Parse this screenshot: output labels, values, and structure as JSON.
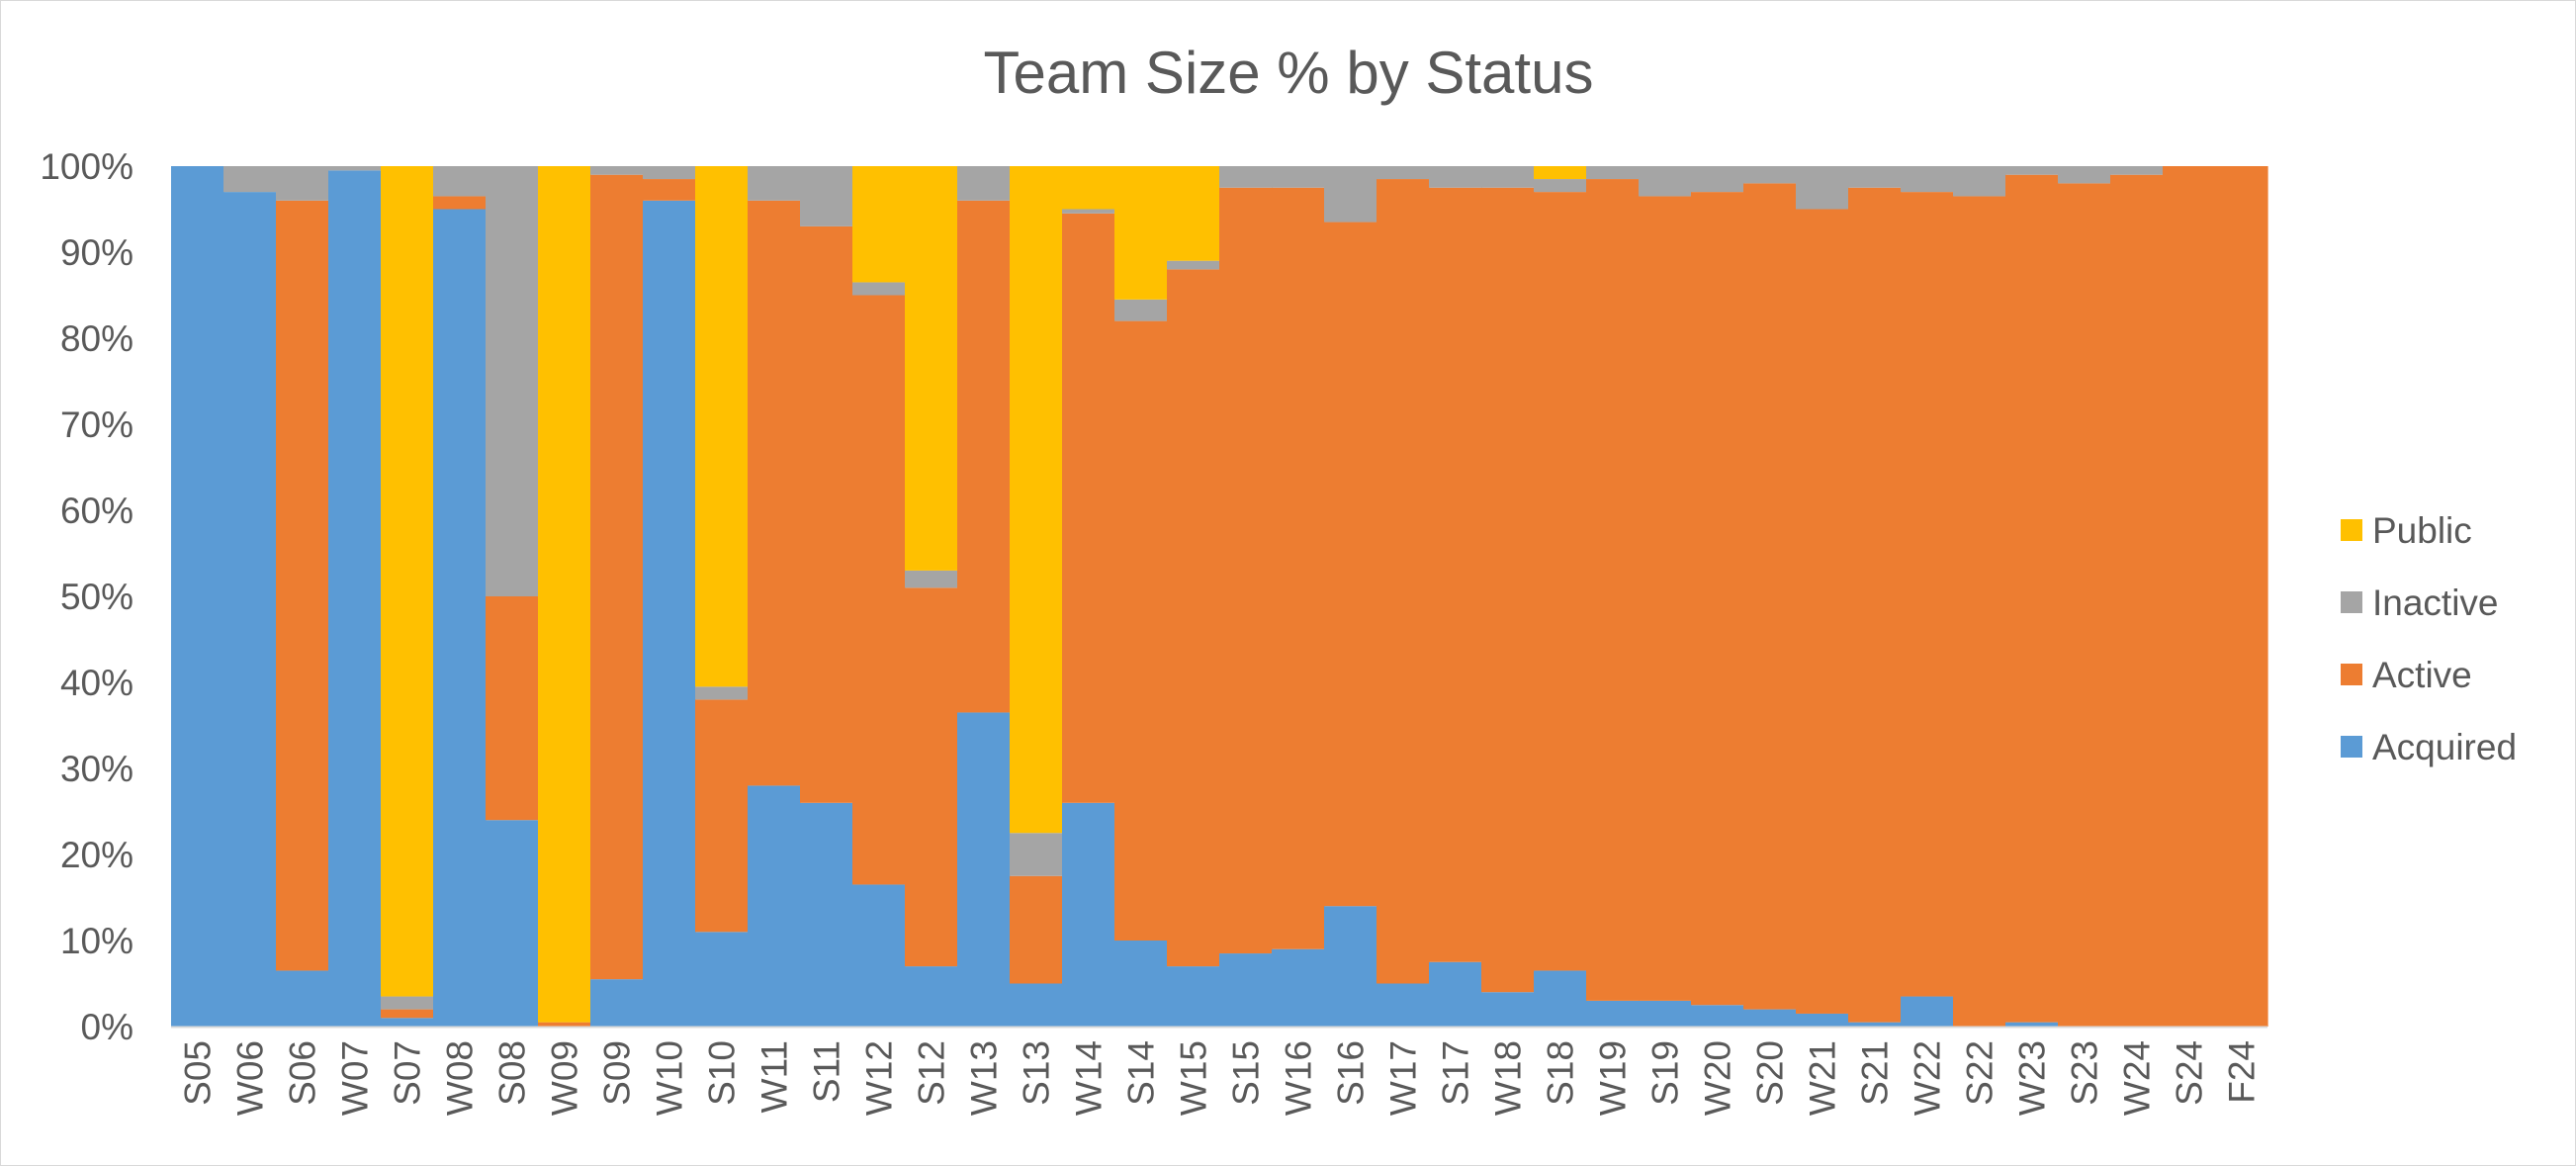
{
  "chart_data": {
    "type": "bar",
    "stacked": "percent",
    "title": "Team Size % by Status",
    "xlabel": "",
    "ylabel": "",
    "ylim": [
      0,
      100
    ],
    "y_ticks": [
      "0%",
      "10%",
      "20%",
      "30%",
      "40%",
      "50%",
      "60%",
      "70%",
      "80%",
      "90%",
      "100%"
    ],
    "grid": false,
    "legend_position": "right",
    "categories": [
      "S05",
      "W06",
      "S06",
      "W07",
      "S07",
      "W08",
      "S08",
      "W09",
      "S09",
      "W10",
      "S10",
      "W11",
      "S11",
      "W12",
      "S12",
      "W13",
      "S13",
      "W14",
      "S14",
      "W15",
      "S15",
      "W16",
      "S16",
      "W17",
      "S17",
      "W18",
      "S18",
      "W19",
      "S19",
      "W20",
      "S20",
      "W21",
      "S21",
      "W22",
      "S22",
      "W23",
      "S23",
      "W24",
      "S24",
      "F24"
    ],
    "series": [
      {
        "name": "Acquired",
        "color": "#5b9bd5",
        "values": [
          100,
          97,
          6.5,
          99.5,
          1,
          95,
          24,
          0,
          5.5,
          96,
          11,
          28,
          26,
          16.5,
          7,
          36.5,
          5,
          26,
          10,
          7,
          8.5,
          9,
          14,
          5,
          7.5,
          4,
          6.5,
          3,
          3,
          2.5,
          2,
          1.5,
          0.5,
          3.5,
          0,
          0.5,
          0,
          0,
          0,
          0
        ]
      },
      {
        "name": "Active",
        "color": "#ed7d31",
        "values": [
          0,
          0,
          89.5,
          0,
          1,
          1.5,
          26,
          0.5,
          93.5,
          2.5,
          27,
          68,
          67,
          68.5,
          44,
          59.5,
          12.5,
          68.5,
          72,
          81,
          89,
          88.5,
          79.5,
          93.5,
          90,
          93.5,
          90.5,
          95.5,
          93.5,
          94.5,
          96,
          93.5,
          97,
          93.5,
          96.5,
          98.5,
          98,
          99,
          100,
          100
        ]
      },
      {
        "name": "Inactive",
        "color": "#a5a5a5",
        "values": [
          0,
          3,
          4,
          0.5,
          1.5,
          3.5,
          50,
          0,
          1,
          1.5,
          1.5,
          4,
          7,
          1.5,
          2,
          4,
          5,
          0.5,
          2.5,
          1,
          2.5,
          2.5,
          6.5,
          1.5,
          2.5,
          2.5,
          1.5,
          1.5,
          3.5,
          3,
          2,
          5,
          2.5,
          3,
          3.5,
          1,
          2,
          1,
          0,
          0
        ]
      },
      {
        "name": "Public",
        "color": "#ffc000",
        "values": [
          0,
          0,
          0,
          0,
          96.5,
          0,
          0,
          99.5,
          0,
          0,
          60.5,
          0,
          0,
          13.5,
          47,
          0,
          77.5,
          5,
          15.5,
          11,
          0,
          0,
          0,
          0,
          0,
          0,
          1.5,
          0,
          0,
          0,
          0,
          0,
          0,
          0,
          0,
          0,
          0,
          0,
          0,
          0
        ]
      }
    ]
  }
}
